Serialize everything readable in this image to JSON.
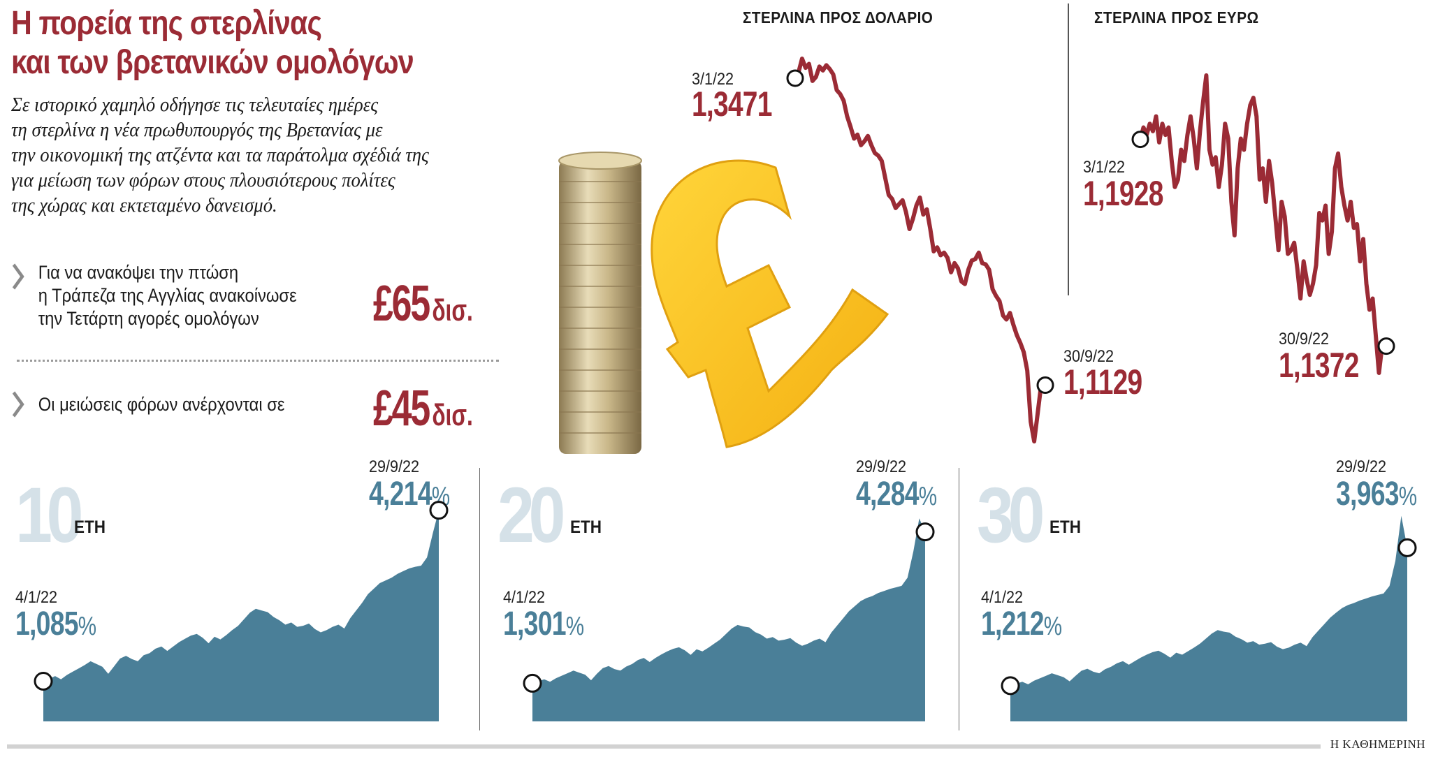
{
  "header": {
    "title_line1": "Η πορεία της στερλίνας",
    "title_line2": "και των βρετανικών ομολόγων",
    "lede": [
      "Σε ιστορικό χαμηλό οδήγησε τις τελευταίες ημέρες",
      "τη στερλίνα η νέα πρωθυπουργός της Βρετανίας με",
      "την οικονομική της ατζέντα και τα παράτολμα σχέδιά της",
      "για μείωση των φόρων στους πλουσιότερους πολίτες",
      "της χώρας και εκτεταμένο δανεισμό."
    ]
  },
  "facts": [
    {
      "icon": "chevron-right-icon",
      "lines": [
        "Για  να ανακόψει την πτώση",
        "η Τράπεζα της Αγγλίας ανακοίνωσε",
        "την Τετάρτη αγορές ομολόγων"
      ],
      "amount": "£65",
      "unit": "δισ."
    },
    {
      "icon": "chevron-right-icon",
      "lines": [
        "Οι μειώσεις φόρων ανέρχονται σε"
      ],
      "amount": "£45",
      "unit": "δισ."
    }
  ],
  "colors": {
    "brand_red": "#9b2b35",
    "bond_blue": "#4a7f98",
    "ghost_blue": "#d5e1e8",
    "gbp_gold": "#f7c21c"
  },
  "illustration": {
    "icon": "pound-sign-coins-icon"
  },
  "footer": {
    "brand": "Η ΚΑΘΗΜΕΡΙΝΗ"
  },
  "chart_data": [
    {
      "id": "gbp_usd",
      "type": "line",
      "title": "ΣΤΕΡΛΙΝΑ ΠΡΟΣ ΔΟΛΑΡΙΟ",
      "start": {
        "date": "3/1/22",
        "value": "1,3471"
      },
      "end": {
        "date": "30/9/22",
        "value": "1,1129"
      },
      "x": [
        "3/1/22",
        "30/9/22"
      ],
      "values": [
        1.3471,
        1.352,
        1.362,
        1.355,
        1.358,
        1.345,
        1.348,
        1.356,
        1.353,
        1.357,
        1.354,
        1.35,
        1.338,
        1.335,
        1.33,
        1.318,
        1.31,
        1.301,
        1.304,
        1.296,
        1.299,
        1.303,
        1.296,
        1.29,
        1.288,
        1.284,
        1.271,
        1.258,
        1.255,
        1.248,
        1.251,
        1.254,
        1.245,
        1.232,
        1.24,
        1.25,
        1.256,
        1.243,
        1.247,
        1.232,
        1.215,
        1.218,
        1.212,
        1.214,
        1.21,
        1.199,
        1.206,
        1.202,
        1.192,
        1.19,
        1.201,
        1.208,
        1.209,
        1.214,
        1.206,
        1.205,
        1.201,
        1.186,
        1.181,
        1.177,
        1.166,
        1.163,
        1.168,
        1.159,
        1.151,
        1.145,
        1.138,
        1.124,
        1.085,
        1.07,
        1.091,
        1.1129
      ],
      "color": "#9b2b35",
      "stroke_width": 6
    },
    {
      "id": "gbp_eur",
      "type": "line",
      "title": "ΣΤΕΡΛΙΝΑ ΠΡΟΣ ΕΥΡΩ",
      "start": {
        "date": "3/1/22",
        "value": "1,1928"
      },
      "end": {
        "date": "30/9/22",
        "value": "1,1372"
      },
      "x": [
        "3/1/22",
        "30/9/22"
      ],
      "values": [
        1.1928,
        1.196,
        1.194,
        1.197,
        1.195,
        1.199,
        1.192,
        1.197,
        1.194,
        1.196,
        1.187,
        1.18,
        1.182,
        1.19,
        1.187,
        1.194,
        1.199,
        1.193,
        1.185,
        1.195,
        1.203,
        1.21,
        1.19,
        1.186,
        1.188,
        1.18,
        1.186,
        1.197,
        1.193,
        1.176,
        1.167,
        1.185,
        1.193,
        1.19,
        1.197,
        1.202,
        1.204,
        1.199,
        1.182,
        1.185,
        1.176,
        1.187,
        1.181,
        1.172,
        1.163,
        1.176,
        1.172,
        1.162,
        1.163,
        1.165,
        1.158,
        1.15,
        1.16,
        1.155,
        1.151,
        1.154,
        1.159,
        1.173,
        1.171,
        1.175,
        1.162,
        1.168,
        1.185,
        1.189,
        1.18,
        1.175,
        1.171,
        1.176,
        1.169,
        1.17,
        1.16,
        1.166,
        1.154,
        1.147,
        1.15,
        1.14,
        1.13,
        1.1372
      ],
      "color": "#9b2b35",
      "stroke_width": 6
    },
    {
      "id": "gilt_10y",
      "type": "area",
      "title": "10 ΕΤΗ",
      "ghost_number": "10",
      "unit_label": "ΕΤΗ",
      "start": {
        "date": "4/1/22",
        "value": "1,085",
        "suffix": "%"
      },
      "end": {
        "date": "29/9/22",
        "value": "4,214",
        "suffix": "%"
      },
      "x": [
        "4/1/22",
        "29/9/22"
      ],
      "values": [
        1.085,
        1.13,
        1.18,
        1.12,
        1.2,
        1.26,
        1.32,
        1.38,
        1.45,
        1.4,
        1.35,
        1.22,
        1.36,
        1.5,
        1.55,
        1.49,
        1.45,
        1.56,
        1.6,
        1.68,
        1.72,
        1.64,
        1.72,
        1.8,
        1.86,
        1.92,
        1.95,
        1.88,
        1.78,
        1.9,
        1.85,
        1.93,
        2.02,
        2.1,
        2.22,
        2.34,
        2.41,
        2.38,
        2.35,
        2.26,
        2.2,
        2.12,
        2.16,
        2.08,
        2.1,
        2.14,
        2.04,
        1.98,
        2.02,
        2.08,
        2.12,
        2.05,
        2.24,
        2.38,
        2.52,
        2.68,
        2.78,
        2.88,
        2.93,
        2.98,
        3.05,
        3.1,
        3.15,
        3.18,
        3.2,
        3.35,
        3.8,
        4.214
      ],
      "ylim": [
        0.35,
        4.35
      ],
      "color": "#4a7f98"
    },
    {
      "id": "gilt_20y",
      "type": "area",
      "title": "20 ΕΤΗ",
      "ghost_number": "20",
      "unit_label": "ΕΤΗ",
      "start": {
        "date": "4/1/22",
        "value": "1,301",
        "suffix": "%"
      },
      "end": {
        "date": "29/9/22",
        "value": "4,284",
        "suffix": "%"
      },
      "x": [
        "4/1/22",
        "29/9/22"
      ],
      "values": [
        1.301,
        1.34,
        1.38,
        1.33,
        1.4,
        1.45,
        1.5,
        1.55,
        1.51,
        1.47,
        1.36,
        1.49,
        1.6,
        1.64,
        1.58,
        1.55,
        1.63,
        1.68,
        1.76,
        1.8,
        1.72,
        1.8,
        1.87,
        1.93,
        1.98,
        2.01,
        1.95,
        1.86,
        1.97,
        1.93,
        2.0,
        2.08,
        2.16,
        2.27,
        2.38,
        2.45,
        2.42,
        2.4,
        2.31,
        2.26,
        2.18,
        2.21,
        2.14,
        2.16,
        2.19,
        2.1,
        2.04,
        2.08,
        2.14,
        2.18,
        2.11,
        2.3,
        2.44,
        2.58,
        2.72,
        2.82,
        2.92,
        2.98,
        3.02,
        3.08,
        3.12,
        3.16,
        3.19,
        3.22,
        3.38,
        3.9,
        4.55,
        4.284
      ],
      "ylim": [
        0.55,
        4.65
      ],
      "color": "#4a7f98"
    },
    {
      "id": "gilt_30y",
      "type": "area",
      "title": "30 ΕΤΗ",
      "ghost_number": "30",
      "unit_label": "ΕΤΗ",
      "start": {
        "date": "4/1/22",
        "value": "1,212",
        "suffix": "%"
      },
      "end": {
        "date": "29/9/22",
        "value": "3,963",
        "suffix": "%"
      },
      "x": [
        "4/1/22",
        "29/9/22"
      ],
      "values": [
        1.212,
        1.25,
        1.29,
        1.24,
        1.31,
        1.36,
        1.41,
        1.46,
        1.42,
        1.38,
        1.3,
        1.41,
        1.51,
        1.55,
        1.49,
        1.46,
        1.54,
        1.59,
        1.66,
        1.7,
        1.63,
        1.7,
        1.77,
        1.83,
        1.88,
        1.91,
        1.85,
        1.77,
        1.87,
        1.83,
        1.9,
        1.97,
        2.05,
        2.15,
        2.25,
        2.32,
        2.29,
        2.27,
        2.19,
        2.14,
        2.07,
        2.1,
        2.03,
        2.05,
        2.08,
        1.99,
        1.94,
        1.97,
        2.03,
        2.07,
        2.0,
        2.18,
        2.31,
        2.44,
        2.57,
        2.67,
        2.76,
        2.82,
        2.86,
        2.91,
        2.95,
        2.99,
        3.02,
        3.05,
        3.2,
        3.7,
        4.6,
        3.963
      ],
      "ylim": [
        0.5,
        4.65
      ],
      "color": "#4a7f98"
    }
  ]
}
